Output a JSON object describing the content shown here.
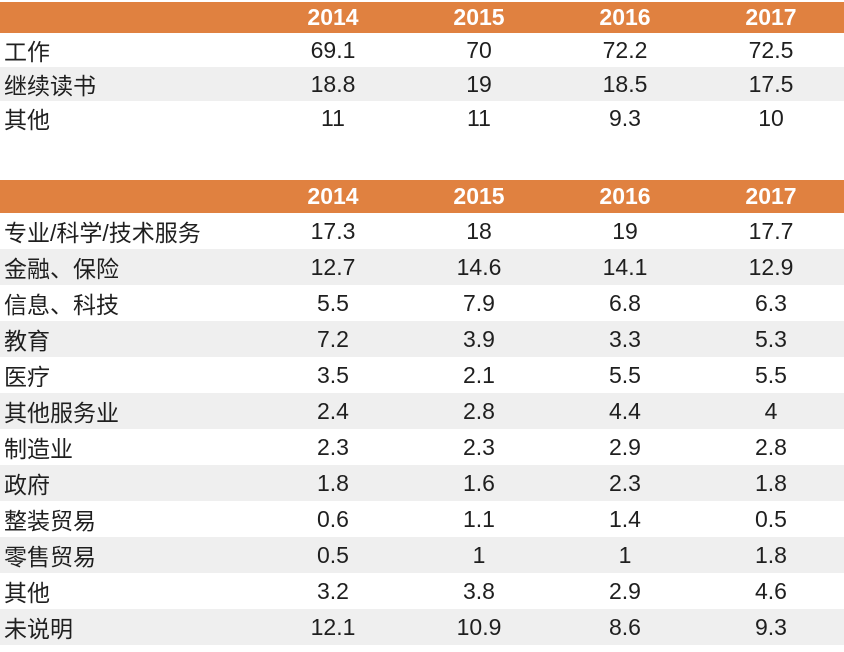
{
  "colors": {
    "header_bg": "#e08140",
    "header_text": "#ffffff",
    "stripe": "#efefef",
    "text": "#1f1f1f"
  },
  "chart_data": [
    {
      "type": "table",
      "title": "",
      "columns": [
        "",
        "2014",
        "2015",
        "2016",
        "2017"
      ],
      "rows": [
        {
          "label": "工作",
          "values": [
            "69.1",
            "70",
            "72.2",
            "72.5"
          ]
        },
        {
          "label": "继续读书",
          "values": [
            "18.8",
            "19",
            "18.5",
            "17.5"
          ]
        },
        {
          "label": "其他",
          "values": [
            "11",
            "11",
            "9.3",
            "10"
          ]
        }
      ]
    },
    {
      "type": "table",
      "title": "",
      "columns": [
        "",
        "2014",
        "2015",
        "2016",
        "2017"
      ],
      "rows": [
        {
          "label": "专业/科学/技术服务",
          "values": [
            "17.3",
            "18",
            "19",
            "17.7"
          ]
        },
        {
          "label": "金融、保险",
          "values": [
            "12.7",
            "14.6",
            "14.1",
            "12.9"
          ]
        },
        {
          "label": "信息、科技",
          "values": [
            "5.5",
            "7.9",
            "6.8",
            "6.3"
          ]
        },
        {
          "label": "教育",
          "values": [
            "7.2",
            "3.9",
            "3.3",
            "5.3"
          ]
        },
        {
          "label": "医疗",
          "values": [
            "3.5",
            "2.1",
            "5.5",
            "5.5"
          ]
        },
        {
          "label": "其他服务业",
          "values": [
            "2.4",
            "2.8",
            "4.4",
            "4"
          ]
        },
        {
          "label": "制造业",
          "values": [
            "2.3",
            "2.3",
            "2.9",
            "2.8"
          ]
        },
        {
          "label": "政府",
          "values": [
            "1.8",
            "1.6",
            "2.3",
            "1.8"
          ]
        },
        {
          "label": "整装贸易",
          "values": [
            "0.6",
            "1.1",
            "1.4",
            "0.5"
          ]
        },
        {
          "label": "零售贸易",
          "values": [
            "0.5",
            "1",
            "1",
            "1.8"
          ]
        },
        {
          "label": "其他",
          "values": [
            "3.2",
            "3.8",
            "2.9",
            "4.6"
          ]
        },
        {
          "label": "未说明",
          "values": [
            "12.1",
            "10.9",
            "8.6",
            "9.3"
          ]
        }
      ]
    }
  ]
}
